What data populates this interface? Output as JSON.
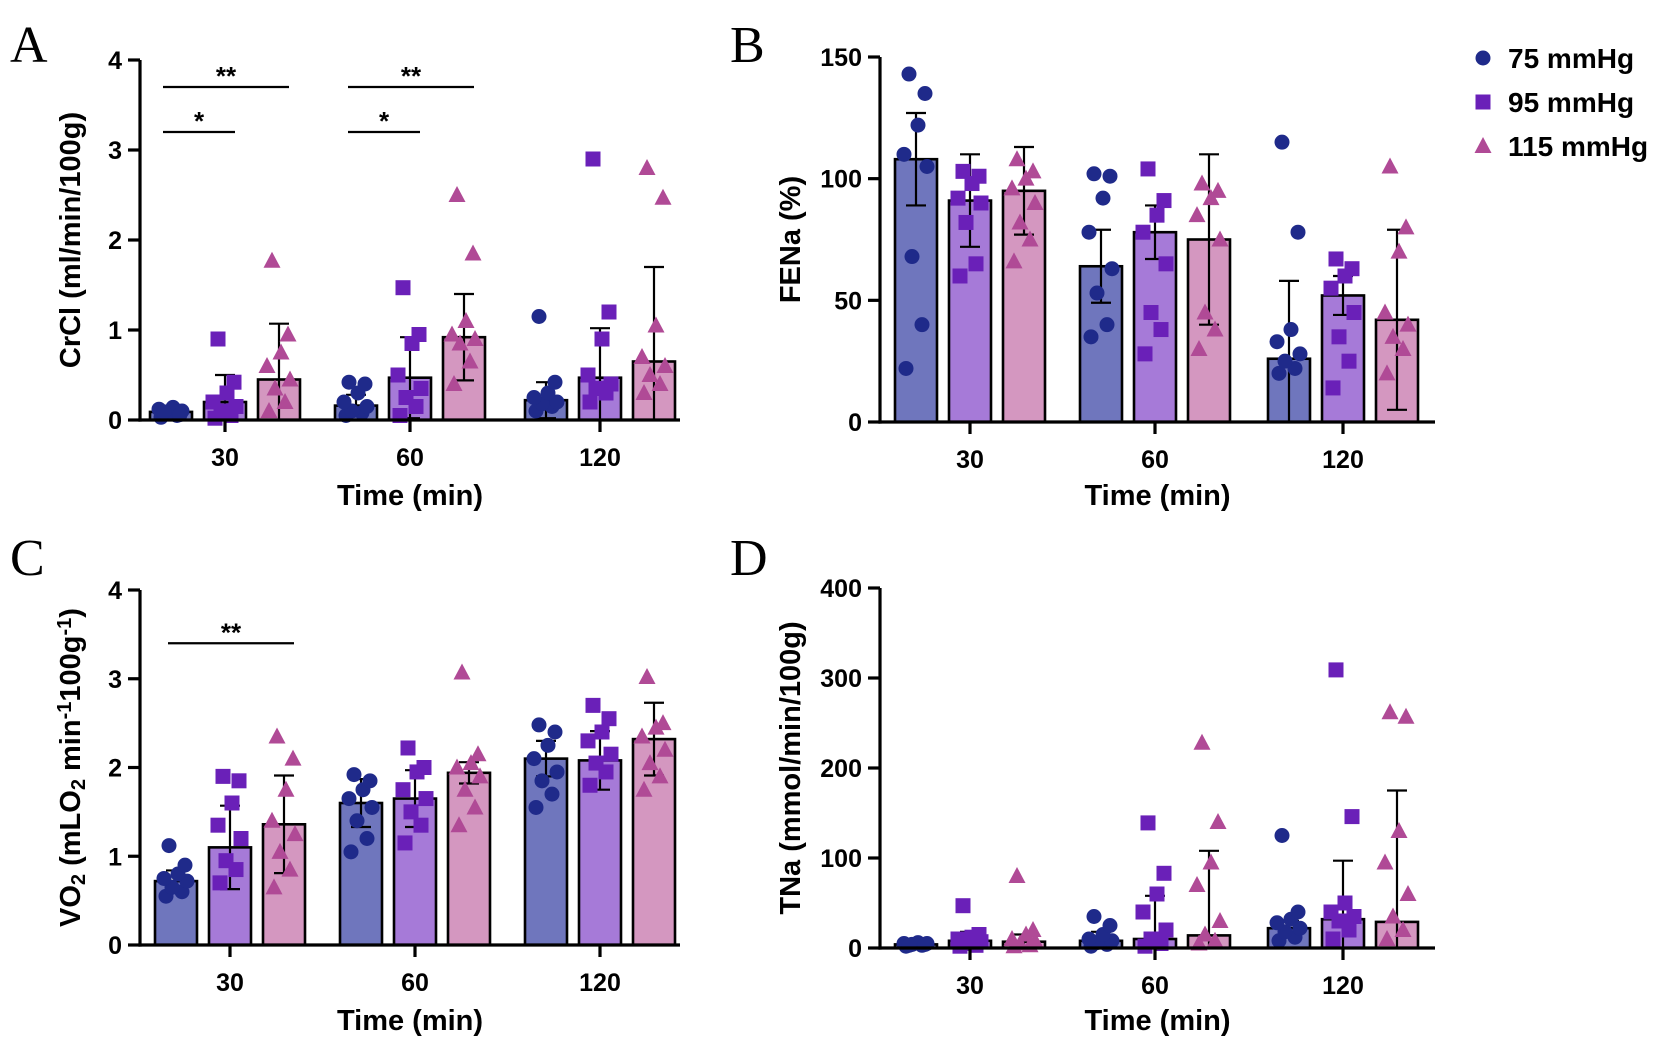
{
  "colors": {
    "series_marker": [
      "#1f2a8a",
      "#6a20b8",
      "#b04a96"
    ],
    "series_bar": [
      "#6f76bd",
      "#a67ad8",
      "#d497c0"
    ]
  },
  "legend": {
    "placement": "top-right",
    "items": [
      {
        "label": "75 mmHg",
        "marker": "circle"
      },
      {
        "label": "95 mmHg",
        "marker": "square"
      },
      {
        "label": "115 mmHg",
        "marker": "triangle"
      }
    ]
  },
  "chart_data": [
    {
      "panel": "A",
      "type": "bar",
      "categories": [
        "30",
        "60",
        "120"
      ],
      "xlabel": "Time (min)",
      "ylabel": "CrCl (ml/min/100g)",
      "ylim": [
        0,
        4
      ],
      "yticks": [
        "0",
        "1",
        "2",
        "3",
        "4"
      ],
      "series": [
        {
          "name": "75 mmHg",
          "marker": "circle",
          "values": [
            0.09,
            0.16,
            0.22
          ],
          "sd": [
            0.05,
            0.12,
            0.2
          ],
          "points": [
            [
              0.03,
              0.05,
              0.08,
              0.1,
              0.12,
              0.14,
              0.06,
              0.09
            ],
            [
              0.05,
              0.08,
              0.1,
              0.15,
              0.2,
              0.3,
              0.4,
              0.42
            ],
            [
              0.1,
              0.15,
              0.18,
              0.2,
              0.25,
              0.3,
              0.42,
              1.15
            ]
          ]
        },
        {
          "name": "95 mmHg",
          "marker": "square",
          "values": [
            0.2,
            0.47,
            0.47
          ],
          "sd": [
            0.3,
            0.45,
            0.55
          ],
          "points": [
            [
              0.02,
              0.05,
              0.1,
              0.15,
              0.2,
              0.3,
              0.42,
              0.9
            ],
            [
              0.05,
              0.15,
              0.25,
              0.35,
              0.5,
              0.85,
              0.95,
              1.47
            ],
            [
              0.2,
              0.3,
              0.35,
              0.4,
              0.5,
              0.9,
              1.2,
              2.9
            ]
          ]
        },
        {
          "name": "115 mmHg",
          "marker": "triangle",
          "values": [
            0.45,
            0.92,
            0.65
          ],
          "sd": [
            0.62,
            0.48,
            1.05
          ],
          "points": [
            [
              0.1,
              0.2,
              0.35,
              0.45,
              0.6,
              0.75,
              0.95,
              1.77
            ],
            [
              0.4,
              0.65,
              0.85,
              0.9,
              0.95,
              1.1,
              1.85,
              2.5
            ],
            [
              0.3,
              0.4,
              0.5,
              0.6,
              0.7,
              1.05,
              2.47,
              2.8
            ]
          ]
        }
      ],
      "significance": [
        {
          "label": "**",
          "group": 0,
          "from_series": 0,
          "to_series": 2,
          "y": 3.7
        },
        {
          "label": "*",
          "group": 0,
          "from_series": 0,
          "to_series": 1,
          "y": 3.2
        },
        {
          "label": "**",
          "group": 1,
          "from_series": 0,
          "to_series": 2,
          "y": 3.7
        },
        {
          "label": "*",
          "group": 1,
          "from_series": 0,
          "to_series": 1,
          "y": 3.2
        }
      ]
    },
    {
      "panel": "B",
      "type": "bar",
      "categories": [
        "30",
        "60",
        "120"
      ],
      "xlabel": "Time (min)",
      "ylabel": "FENa (%)",
      "ylim": [
        0,
        150
      ],
      "yticks": [
        "0",
        "50",
        "100",
        "150"
      ],
      "series": [
        {
          "name": "75 mmHg",
          "marker": "circle",
          "values": [
            108,
            64,
            26
          ],
          "sd": [
            19,
            15,
            32
          ],
          "points": [
            [
              22,
              40,
              68,
              105,
              110,
              122,
              135,
              143
            ],
            [
              35,
              40,
              53,
              63,
              78,
              92,
              101,
              102
            ],
            [
              20,
              22,
              25,
              28,
              33,
              38,
              78,
              115
            ]
          ]
        },
        {
          "name": "95 mmHg",
          "marker": "square",
          "values": [
            91,
            78,
            52
          ],
          "sd": [
            19,
            11,
            8
          ],
          "points": [
            [
              60,
              65,
              82,
              90,
              92,
              98,
              101,
              103
            ],
            [
              28,
              38,
              45,
              65,
              78,
              85,
              91,
              104
            ],
            [
              14,
              25,
              35,
              45,
              55,
              60,
              63,
              67
            ]
          ]
        },
        {
          "name": "115 mmHg",
          "marker": "triangle",
          "values": [
            95,
            75,
            42
          ],
          "sd": [
            18,
            35,
            37
          ],
          "points": [
            [
              66,
              75,
              82,
              90,
              96,
              100,
              103,
              108
            ],
            [
              30,
              38,
              45,
              75,
              85,
              92,
              95,
              98
            ],
            [
              20,
              30,
              35,
              40,
              45,
              70,
              80,
              105
            ]
          ]
        }
      ],
      "significance": []
    },
    {
      "panel": "C",
      "type": "bar",
      "categories": [
        "30",
        "60",
        "120"
      ],
      "xlabel": "Time (min)",
      "ylabel": "VO2 (mLO2 min-1 100g-1)",
      "ylim": [
        0,
        4
      ],
      "yticks": [
        "0",
        "1",
        "2",
        "3",
        "4"
      ],
      "series": [
        {
          "name": "75 mmHg",
          "marker": "circle",
          "values": [
            0.72,
            1.6,
            2.1
          ],
          "sd": [
            0.12,
            0.27,
            0.2
          ],
          "points": [
            [
              0.55,
              0.6,
              0.65,
              0.72,
              0.75,
              0.8,
              0.9,
              1.12
            ],
            [
              1.05,
              1.2,
              1.4,
              1.55,
              1.65,
              1.75,
              1.85,
              1.92
            ],
            [
              1.55,
              1.7,
              1.85,
              1.95,
              2.1,
              2.25,
              2.4,
              2.48
            ]
          ]
        },
        {
          "name": "95 mmHg",
          "marker": "square",
          "values": [
            1.1,
            1.65,
            2.08
          ],
          "sd": [
            0.47,
            0.32,
            0.33
          ],
          "points": [
            [
              0.7,
              0.85,
              0.95,
              1.2,
              1.35,
              1.6,
              1.85,
              1.9
            ],
            [
              1.15,
              1.35,
              1.5,
              1.65,
              1.75,
              1.95,
              2.0,
              2.22
            ],
            [
              1.8,
              1.95,
              2.05,
              2.15,
              2.3,
              2.4,
              2.55,
              2.7
            ]
          ]
        },
        {
          "name": "115 mmHg",
          "marker": "triangle",
          "values": [
            1.36,
            1.94,
            2.32
          ],
          "sd": [
            0.55,
            0.12,
            0.41
          ],
          "points": [
            [
              0.65,
              0.85,
              1.05,
              1.25,
              1.4,
              1.75,
              2.1,
              2.35
            ],
            [
              1.35,
              1.55,
              1.75,
              1.9,
              2.0,
              2.05,
              2.15,
              3.07
            ],
            [
              1.75,
              1.9,
              2.05,
              2.2,
              2.35,
              2.45,
              2.5,
              3.02
            ]
          ]
        }
      ],
      "significance": [
        {
          "label": "**",
          "group": 0,
          "from_series": 0,
          "to_series": 2,
          "y": 3.4
        }
      ]
    },
    {
      "panel": "D",
      "type": "bar",
      "categories": [
        "30",
        "60",
        "120"
      ],
      "xlabel": "Time (min)",
      "ylabel": "TNa (mmol/min/100g)",
      "ylim": [
        0,
        400
      ],
      "yticks": [
        "0",
        "100",
        "200",
        "300",
        "400"
      ],
      "series": [
        {
          "name": "75 mmHg",
          "marker": "circle",
          "values": [
            4,
            8,
            22
          ],
          "sd": [
            2,
            10,
            8
          ],
          "points": [
            [
              2,
              3,
              4,
              5,
              5,
              6,
              4,
              3
            ],
            [
              2,
              4,
              6,
              8,
              10,
              15,
              25,
              35
            ],
            [
              8,
              12,
              18,
              22,
              28,
              32,
              40,
              125
            ]
          ]
        },
        {
          "name": "95 mmHg",
          "marker": "square",
          "values": [
            8,
            10,
            32
          ],
          "sd": [
            10,
            48,
            65
          ],
          "points": [
            [
              2,
              3,
              5,
              7,
              10,
              12,
              15,
              47
            ],
            [
              2,
              5,
              10,
              20,
              40,
              60,
              83,
              139
            ],
            [
              10,
              20,
              30,
              35,
              40,
              50,
              146,
              309
            ]
          ]
        },
        {
          "name": "115 mmHg",
          "marker": "triangle",
          "values": [
            7,
            14,
            29
          ],
          "sd": [
            8,
            94,
            146
          ],
          "points": [
            [
              2,
              3,
              5,
              8,
              10,
              15,
              20,
              80
            ],
            [
              5,
              8,
              15,
              30,
              70,
              95,
              140,
              228
            ],
            [
              10,
              20,
              35,
              60,
              95,
              130,
              257,
              262
            ]
          ]
        }
      ],
      "significance": []
    }
  ]
}
